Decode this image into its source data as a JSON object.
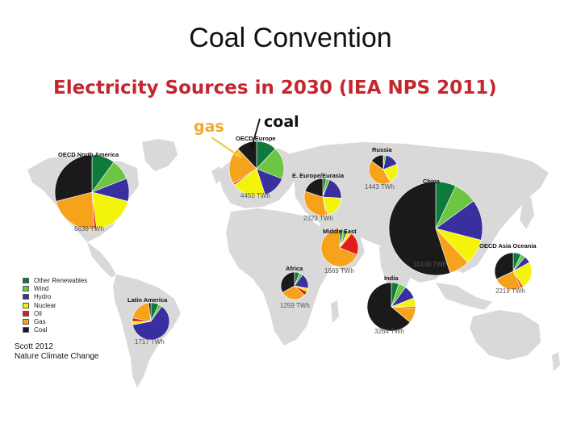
{
  "slide": {
    "title": "Coal Convention"
  },
  "annotations": {
    "gas": "gas",
    "coal": "coal"
  },
  "source": {
    "line1": "Scott 2012",
    "line2": "Nature Climate Change"
  },
  "colors": {
    "land": "#d9d9d9",
    "Other Renewables": "#0e7a3b",
    "Wind": "#6cc644",
    "Hydro": "#3a2f9e",
    "Nuclear": "#f3f30b",
    "Oil": "#e21b1b",
    "Gas": "#f7a21b",
    "Coal": "#1a1a1a"
  },
  "chart_data": {
    "type": "pie",
    "title": "Electricity Sources in 2030 (IEA  NPS 2011)",
    "legend_position": "left",
    "categories": [
      "Other Renewables",
      "Wind",
      "Hydro",
      "Nuclear",
      "Oil",
      "Gas",
      "Coal"
    ],
    "regions": [
      {
        "name": "OECD North America",
        "twh": "6636 TWh",
        "values": [
          10,
          9,
          10,
          19,
          1,
          22,
          29
        ]
      },
      {
        "name": "OECD Europe",
        "twh": "4450 TWh",
        "values": [
          12,
          19,
          14,
          20,
          1,
          22,
          12
        ]
      },
      {
        "name": "Russia",
        "twh": "1443 TWh",
        "values": [
          1,
          2,
          16,
          22,
          1,
          43,
          15
        ]
      },
      {
        "name": "E. Europe/Eurasia",
        "twh": "2323 TWh",
        "values": [
          3,
          3,
          20,
          20,
          1,
          33,
          20
        ]
      },
      {
        "name": "China",
        "twh": "10100 TWh",
        "values": [
          7,
          8,
          14,
          9,
          0,
          7,
          55
        ]
      },
      {
        "name": "Middle East",
        "twh": "1669 TWh",
        "values": [
          3,
          2,
          2,
          4,
          20,
          69,
          0
        ]
      },
      {
        "name": "OECD Asia Oceania",
        "twh": "2219 TWh",
        "values": [
          7,
          4,
          6,
          24,
          2,
          25,
          32
        ]
      },
      {
        "name": "Africa",
        "twh": "1259 TWh",
        "values": [
          6,
          4,
          18,
          4,
          5,
          30,
          33
        ]
      },
      {
        "name": "India",
        "twh": "3264 TWh",
        "values": [
          5,
          5,
          9,
          6,
          1,
          10,
          64
        ]
      },
      {
        "name": "Latin America",
        "twh": "1717 TWh",
        "values": [
          7,
          3,
          62,
          3,
          3,
          20,
          2
        ]
      }
    ]
  }
}
